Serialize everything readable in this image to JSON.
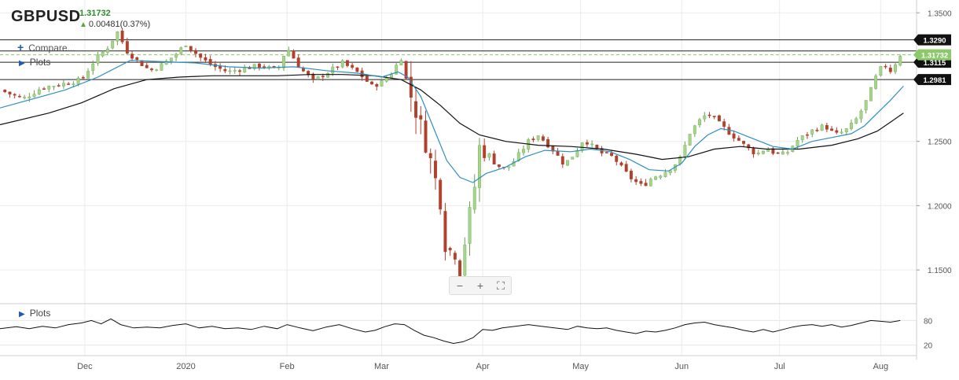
{
  "header": {
    "symbol": "GBPUSD",
    "last_price": "1.31732",
    "change": "0.00481(0.37%)"
  },
  "controls": {
    "compare_label": "Compare...",
    "plots_label": "Plots",
    "plots_lower_label": "Plots",
    "zoom_out_icon": "minus-icon",
    "zoom_in_icon": "plus-icon",
    "fullscreen_icon": "fullscreen-icon"
  },
  "colors": {
    "up_candle": "#a5d48a",
    "down_candle": "#b0412c",
    "ma_fast": "#2f8fbf",
    "ma_slow": "#111111",
    "last_price_label": "#8cc96a",
    "level_label": "#111111"
  },
  "chart_data": {
    "type": "candlestick",
    "symbol": "GBPUSD",
    "y_range": [
      1.125,
      1.3575
    ],
    "y_ticks": [
      {
        "label": "1.3500",
        "value": 1.35
      },
      {
        "label": "1.2500",
        "value": 1.25
      },
      {
        "label": "1.2000",
        "value": 1.2
      },
      {
        "label": "1.1500",
        "value": 1.15
      }
    ],
    "x_labels": [
      {
        "label": "Dec",
        "day": 1
      },
      {
        "label": "2020",
        "day": 32
      },
      {
        "label": "Feb",
        "day": 63
      },
      {
        "label": "Mar",
        "day": 92
      },
      {
        "label": "Apr",
        "day": 123
      },
      {
        "label": "May",
        "day": 153
      },
      {
        "label": "Jun",
        "day": 184
      },
      {
        "label": "Jul",
        "day": 214
      },
      {
        "label": "Aug",
        "day": 245
      }
    ],
    "x_range_days": [
      -25,
      256
    ],
    "horizontal_levels": [
      {
        "label": "1.3290",
        "value": 1.329
      },
      {
        "label": "",
        "value": 1.3203
      },
      {
        "label": "1.3115",
        "value": 1.3115
      },
      {
        "label": "1.2981",
        "value": 1.2981
      }
    ],
    "last_price": {
      "label": "1.31732",
      "value": 1.31732
    },
    "close_path": [
      [
        -25,
        1.29
      ],
      [
        -18,
        1.283
      ],
      [
        -12,
        1.292
      ],
      [
        -5,
        1.295
      ],
      [
        0,
        1.298
      ],
      [
        4,
        1.313
      ],
      [
        8,
        1.323
      ],
      [
        11,
        1.335
      ],
      [
        14,
        1.32
      ],
      [
        17,
        1.313
      ],
      [
        21,
        1.305
      ],
      [
        25,
        1.31
      ],
      [
        29,
        1.318
      ],
      [
        32,
        1.326
      ],
      [
        36,
        1.316
      ],
      [
        40,
        1.309
      ],
      [
        45,
        1.304
      ],
      [
        50,
        1.307
      ],
      [
        55,
        1.309
      ],
      [
        60,
        1.305
      ],
      [
        63,
        1.323
      ],
      [
        67,
        1.307
      ],
      [
        71,
        1.297
      ],
      [
        75,
        1.303
      ],
      [
        80,
        1.311
      ],
      [
        85,
        1.303
      ],
      [
        89,
        1.293
      ],
      [
        92,
        1.296
      ],
      [
        95,
        1.303
      ],
      [
        98,
        1.315
      ],
      [
        100,
        1.293
      ],
      [
        103,
        1.27
      ],
      [
        106,
        1.245
      ],
      [
        108,
        1.225
      ],
      [
        110,
        1.205
      ],
      [
        112,
        1.16
      ],
      [
        114,
        1.17
      ],
      [
        116,
        1.15
      ],
      [
        118,
        1.18
      ],
      [
        120,
        1.205
      ],
      [
        122,
        1.245
      ],
      [
        124,
        1.243
      ],
      [
        127,
        1.232
      ],
      [
        130,
        1.228
      ],
      [
        133,
        1.236
      ],
      [
        137,
        1.25
      ],
      [
        140,
        1.255
      ],
      [
        144,
        1.245
      ],
      [
        148,
        1.232
      ],
      [
        151,
        1.24
      ],
      [
        154,
        1.252
      ],
      [
        157,
        1.245
      ],
      [
        160,
        1.24
      ],
      [
        163,
        1.238
      ],
      [
        166,
        1.228
      ],
      [
        169,
        1.22
      ],
      [
        172,
        1.215
      ],
      [
        175,
        1.222
      ],
      [
        178,
        1.225
      ],
      [
        181,
        1.23
      ],
      [
        184,
        1.238
      ],
      [
        186,
        1.255
      ],
      [
        189,
        1.265
      ],
      [
        192,
        1.272
      ],
      [
        195,
        1.265
      ],
      [
        198,
        1.258
      ],
      [
        201,
        1.252
      ],
      [
        204,
        1.245
      ],
      [
        207,
        1.24
      ],
      [
        210,
        1.245
      ],
      [
        213,
        1.24
      ],
      [
        216,
        1.24
      ],
      [
        219,
        1.25
      ],
      [
        222,
        1.255
      ],
      [
        225,
        1.26
      ],
      [
        228,
        1.262
      ],
      [
        231,
        1.255
      ],
      [
        234,
        1.258
      ],
      [
        237,
        1.265
      ],
      [
        240,
        1.278
      ],
      [
        242,
        1.29
      ],
      [
        244,
        1.303
      ],
      [
        246,
        1.31
      ],
      [
        248,
        1.305
      ],
      [
        250,
        1.3125
      ],
      [
        251,
        1.3173
      ]
    ],
    "fast_ma_points": [
      [
        -25,
        1.276
      ],
      [
        -15,
        1.283
      ],
      [
        -5,
        1.29
      ],
      [
        5,
        1.3
      ],
      [
        15,
        1.313
      ],
      [
        25,
        1.312
      ],
      [
        35,
        1.311
      ],
      [
        45,
        1.308
      ],
      [
        55,
        1.307
      ],
      [
        65,
        1.308
      ],
      [
        75,
        1.305
      ],
      [
        85,
        1.303
      ],
      [
        92,
        1.3
      ],
      [
        97,
        1.304
      ],
      [
        100,
        1.3
      ],
      [
        104,
        1.285
      ],
      [
        108,
        1.26
      ],
      [
        112,
        1.235
      ],
      [
        116,
        1.222
      ],
      [
        120,
        1.218
      ],
      [
        124,
        1.225
      ],
      [
        130,
        1.23
      ],
      [
        136,
        1.238
      ],
      [
        142,
        1.243
      ],
      [
        150,
        1.242
      ],
      [
        156,
        1.244
      ],
      [
        162,
        1.242
      ],
      [
        168,
        1.236
      ],
      [
        174,
        1.228
      ],
      [
        180,
        1.227
      ],
      [
        184,
        1.233
      ],
      [
        188,
        1.246
      ],
      [
        192,
        1.255
      ],
      [
        196,
        1.26
      ],
      [
        200,
        1.258
      ],
      [
        206,
        1.252
      ],
      [
        212,
        1.246
      ],
      [
        218,
        1.244
      ],
      [
        224,
        1.25
      ],
      [
        230,
        1.253
      ],
      [
        236,
        1.256
      ],
      [
        240,
        1.262
      ],
      [
        244,
        1.272
      ],
      [
        248,
        1.282
      ],
      [
        252,
        1.293
      ]
    ],
    "slow_ma_points": [
      [
        -25,
        1.263
      ],
      [
        -10,
        1.272
      ],
      [
        0,
        1.28
      ],
      [
        10,
        1.291
      ],
      [
        20,
        1.298
      ],
      [
        30,
        1.3
      ],
      [
        40,
        1.301
      ],
      [
        50,
        1.301
      ],
      [
        60,
        1.301
      ],
      [
        70,
        1.302
      ],
      [
        80,
        1.302
      ],
      [
        90,
        1.301
      ],
      [
        98,
        1.298
      ],
      [
        104,
        1.29
      ],
      [
        110,
        1.278
      ],
      [
        116,
        1.264
      ],
      [
        122,
        1.255
      ],
      [
        130,
        1.25
      ],
      [
        140,
        1.247
      ],
      [
        150,
        1.246
      ],
      [
        160,
        1.244
      ],
      [
        170,
        1.24
      ],
      [
        178,
        1.236
      ],
      [
        186,
        1.238
      ],
      [
        194,
        1.244
      ],
      [
        202,
        1.246
      ],
      [
        210,
        1.244
      ],
      [
        220,
        1.244
      ],
      [
        230,
        1.247
      ],
      [
        238,
        1.252
      ],
      [
        244,
        1.258
      ],
      [
        248,
        1.265
      ],
      [
        252,
        1.272
      ]
    ],
    "oscillator": {
      "y_ticks": [
        {
          "label": "80",
          "value": 80
        },
        {
          "label": "20",
          "value": 20
        }
      ],
      "y_range": [
        0,
        100
      ],
      "points": [
        [
          -25,
          60
        ],
        [
          -20,
          65
        ],
        [
          -16,
          60
        ],
        [
          -12,
          66
        ],
        [
          -8,
          62
        ],
        [
          -4,
          70
        ],
        [
          0,
          74
        ],
        [
          3,
          80
        ],
        [
          6,
          72
        ],
        [
          9,
          84
        ],
        [
          12,
          70
        ],
        [
          16,
          62
        ],
        [
          20,
          64
        ],
        [
          24,
          62
        ],
        [
          28,
          68
        ],
        [
          32,
          72
        ],
        [
          36,
          62
        ],
        [
          40,
          66
        ],
        [
          44,
          60
        ],
        [
          48,
          62
        ],
        [
          52,
          58
        ],
        [
          56,
          66
        ],
        [
          60,
          60
        ],
        [
          63,
          70
        ],
        [
          67,
          62
        ],
        [
          71,
          55
        ],
        [
          75,
          64
        ],
        [
          79,
          70
        ],
        [
          83,
          60
        ],
        [
          87,
          52
        ],
        [
          90,
          56
        ],
        [
          93,
          65
        ],
        [
          96,
          72
        ],
        [
          99,
          70
        ],
        [
          102,
          56
        ],
        [
          105,
          44
        ],
        [
          108,
          38
        ],
        [
          111,
          30
        ],
        [
          114,
          24
        ],
        [
          117,
          28
        ],
        [
          120,
          38
        ],
        [
          123,
          58
        ],
        [
          126,
          56
        ],
        [
          129,
          62
        ],
        [
          133,
          66
        ],
        [
          137,
          70
        ],
        [
          141,
          66
        ],
        [
          145,
          62
        ],
        [
          149,
          58
        ],
        [
          152,
          66
        ],
        [
          155,
          62
        ],
        [
          158,
          60
        ],
        [
          161,
          62
        ],
        [
          164,
          56
        ],
        [
          167,
          52
        ],
        [
          170,
          48
        ],
        [
          173,
          54
        ],
        [
          176,
          52
        ],
        [
          179,
          56
        ],
        [
          182,
          62
        ],
        [
          185,
          70
        ],
        [
          188,
          74
        ],
        [
          191,
          76
        ],
        [
          194,
          70
        ],
        [
          197,
          66
        ],
        [
          200,
          62
        ],
        [
          203,
          56
        ],
        [
          206,
          52
        ],
        [
          209,
          58
        ],
        [
          212,
          52
        ],
        [
          215,
          58
        ],
        [
          218,
          64
        ],
        [
          221,
          68
        ],
        [
          224,
          70
        ],
        [
          227,
          66
        ],
        [
          230,
          70
        ],
        [
          233,
          64
        ],
        [
          236,
          68
        ],
        [
          239,
          74
        ],
        [
          242,
          80
        ],
        [
          245,
          78
        ],
        [
          248,
          76
        ],
        [
          251,
          80
        ]
      ]
    }
  }
}
